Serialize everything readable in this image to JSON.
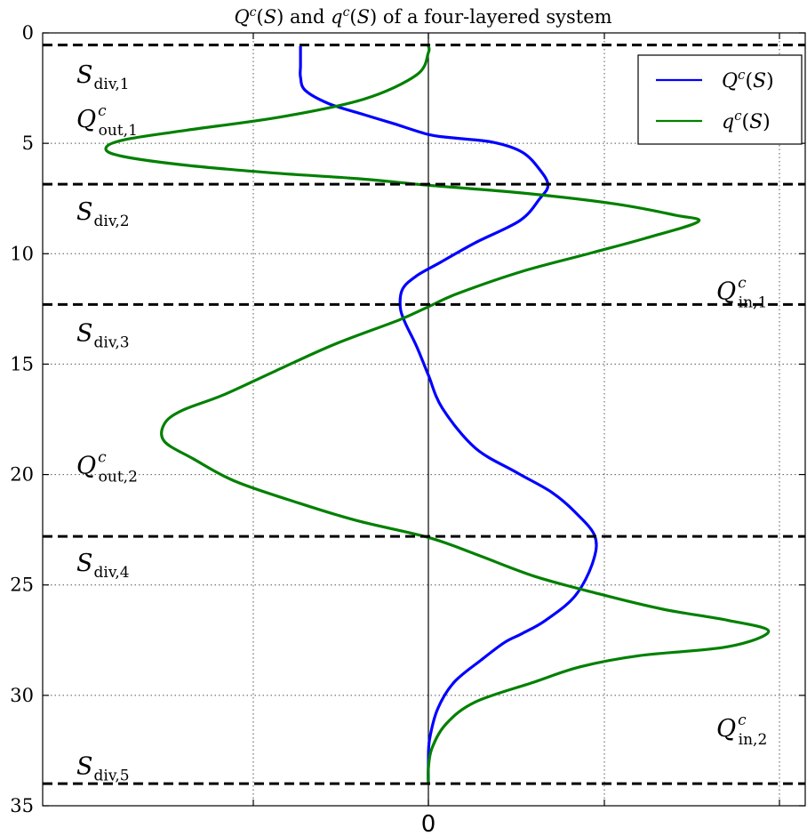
{
  "chart_data": {
    "type": "line",
    "title": "Q^c(S) and q^c(S) of a four-layered system",
    "orientation": "vertical-depth",
    "ylim": [
      35,
      0
    ],
    "yticks": [
      "0",
      "5",
      "10",
      "15",
      "20",
      "25",
      "30",
      "35"
    ],
    "xticks": [
      "0"
    ],
    "grid": true,
    "legend_position": "top-right",
    "series": [
      {
        "name": "Q^c(S)",
        "color": "#0000ff",
        "points": [
          [
            -1.09,
            0.6
          ],
          [
            -1.09,
            1.5
          ],
          [
            -1.09,
            2.0
          ],
          [
            -1.05,
            2.6
          ],
          [
            -0.85,
            3.2
          ],
          [
            -0.55,
            3.7
          ],
          [
            -0.3,
            4.1
          ],
          [
            0.0,
            4.6
          ],
          [
            0.2,
            4.75
          ],
          [
            0.55,
            4.95
          ],
          [
            0.8,
            5.4
          ],
          [
            0.95,
            6.2
          ],
          [
            1.02,
            6.9
          ],
          [
            0.95,
            7.5
          ],
          [
            0.78,
            8.5
          ],
          [
            0.4,
            9.5
          ],
          [
            0.1,
            10.4
          ],
          [
            -0.1,
            11.0
          ],
          [
            -0.22,
            11.6
          ],
          [
            -0.24,
            12.4
          ],
          [
            -0.2,
            13.1
          ],
          [
            -0.1,
            14.2
          ],
          [
            0.0,
            15.5
          ],
          [
            0.12,
            17.0
          ],
          [
            0.4,
            18.8
          ],
          [
            0.75,
            19.9
          ],
          [
            1.05,
            20.8
          ],
          [
            1.25,
            21.7
          ],
          [
            1.42,
            22.8
          ],
          [
            1.4,
            24.0
          ],
          [
            1.25,
            25.5
          ],
          [
            1.0,
            26.6
          ],
          [
            0.8,
            27.2
          ],
          [
            0.65,
            27.6
          ],
          [
            0.45,
            28.4
          ],
          [
            0.22,
            29.4
          ],
          [
            0.08,
            30.6
          ],
          [
            0.01,
            32.0
          ],
          [
            0.0,
            33.0
          ],
          [
            0.0,
            34.0
          ]
        ]
      },
      {
        "name": "q^c(S)",
        "color": "#008000",
        "points": [
          [
            0.0,
            0.6
          ],
          [
            0.0,
            0.9
          ],
          [
            -0.1,
            1.9
          ],
          [
            -0.55,
            3.0
          ],
          [
            -1.25,
            3.8
          ],
          [
            -2.05,
            4.4
          ],
          [
            -2.6,
            4.85
          ],
          [
            -2.75,
            5.25
          ],
          [
            -2.6,
            5.6
          ],
          [
            -2.05,
            6.0
          ],
          [
            -1.3,
            6.35
          ],
          [
            -0.6,
            6.6
          ],
          [
            0.0,
            6.9
          ],
          [
            0.8,
            7.25
          ],
          [
            1.6,
            7.75
          ],
          [
            2.1,
            8.25
          ],
          [
            2.3,
            8.55
          ],
          [
            1.85,
            9.3
          ],
          [
            1.4,
            9.95
          ],
          [
            0.8,
            10.8
          ],
          [
            0.25,
            11.8
          ],
          [
            0.0,
            12.4
          ],
          [
            -0.25,
            13.0
          ],
          [
            -0.8,
            14.1
          ],
          [
            -1.3,
            15.3
          ],
          [
            -1.75,
            16.4
          ],
          [
            -2.1,
            17.1
          ],
          [
            -2.25,
            17.7
          ],
          [
            -2.25,
            18.5
          ],
          [
            -2.0,
            19.3
          ],
          [
            -1.65,
            20.3
          ],
          [
            -1.1,
            21.3
          ],
          [
            -0.6,
            22.1
          ],
          [
            0.0,
            22.85
          ],
          [
            0.4,
            23.6
          ],
          [
            0.9,
            24.6
          ],
          [
            1.45,
            25.4
          ],
          [
            2.0,
            26.1
          ],
          [
            2.55,
            26.6
          ],
          [
            2.9,
            27.1
          ],
          [
            2.55,
            27.8
          ],
          [
            1.8,
            28.2
          ],
          [
            1.3,
            28.7
          ],
          [
            0.9,
            29.4
          ],
          [
            0.4,
            30.3
          ],
          [
            0.15,
            31.3
          ],
          [
            0.03,
            32.4
          ],
          [
            0.0,
            33.3
          ],
          [
            0.0,
            34.0
          ]
        ]
      }
    ],
    "horizontal_lines": [
      {
        "y": 0.55,
        "style": "dashed"
      },
      {
        "y": 6.85,
        "style": "dashed"
      },
      {
        "y": 12.3,
        "style": "dashed"
      },
      {
        "y": 22.8,
        "style": "dashed"
      },
      {
        "y": 34.0,
        "style": "dashed"
      }
    ],
    "annotations": [
      {
        "id": "sdiv1",
        "text": "S",
        "sub": "div,1",
        "y": 1.9,
        "side": "left"
      },
      {
        "id": "qout1",
        "text": "Q",
        "sup": "c",
        "sub": "out,1",
        "y": 3.9,
        "side": "left"
      },
      {
        "id": "sdiv2",
        "text": "S",
        "sub": "div,2",
        "y": 8.1,
        "side": "left"
      },
      {
        "id": "qin1",
        "text": "Q",
        "sup": "c",
        "sub": "in,1",
        "y": 11.7,
        "side": "right"
      },
      {
        "id": "sdiv3",
        "text": "S",
        "sub": "div,3",
        "y": 13.6,
        "side": "left"
      },
      {
        "id": "qout2",
        "text": "Q",
        "sup": "c",
        "sub": "out,2",
        "y": 19.6,
        "side": "left"
      },
      {
        "id": "sdiv4",
        "text": "S",
        "sub": "div,4",
        "y": 24.0,
        "side": "left"
      },
      {
        "id": "qin2",
        "text": "Q",
        "sup": "c",
        "sub": "in,2",
        "y": 31.5,
        "side": "right"
      },
      {
        "id": "sdiv5",
        "text": "S",
        "sub": "div,5",
        "y": 33.2,
        "side": "left"
      }
    ]
  }
}
